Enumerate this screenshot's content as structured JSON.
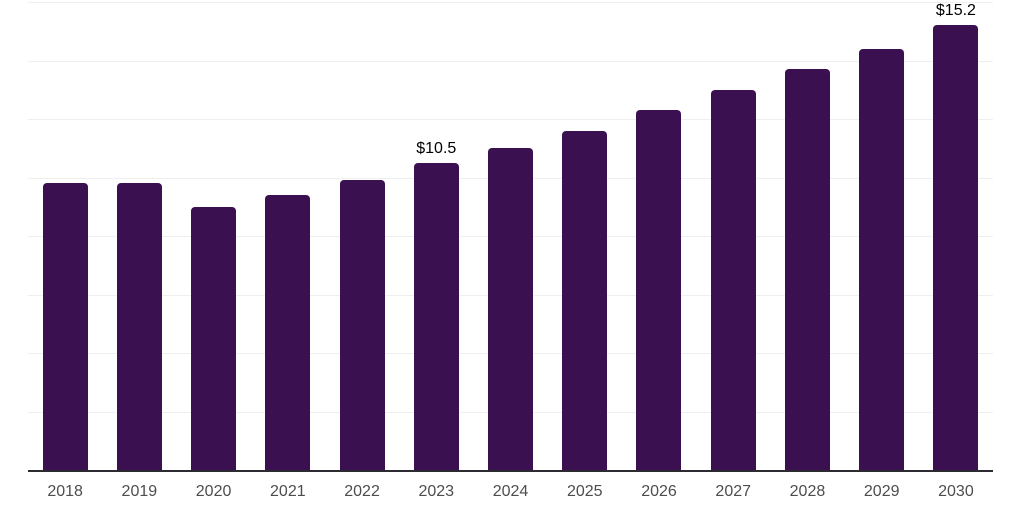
{
  "chart_data": {
    "type": "bar",
    "title": "",
    "xlabel": "",
    "ylabel": "",
    "categories": [
      "2018",
      "2019",
      "2020",
      "2021",
      "2022",
      "2023",
      "2024",
      "2025",
      "2026",
      "2027",
      "2028",
      "2029",
      "2030"
    ],
    "values": [
      9.8,
      9.8,
      9.0,
      9.4,
      9.9,
      10.5,
      11.0,
      11.6,
      12.3,
      13.0,
      13.7,
      14.4,
      15.2
    ],
    "data_labels": [
      "",
      "",
      "",
      "",
      "",
      "$10.5",
      "",
      "",
      "",
      "",
      "",
      "",
      "$15.2"
    ],
    "ylim": [
      0,
      16
    ],
    "gridline_step": 2,
    "grid": "horizontal",
    "legend_position": "none",
    "colors": {
      "bar": "#3A1051",
      "axis_line": "#2B2B31",
      "gridline": "#EFEFEF",
      "tick_label": "#4D4D4D",
      "data_label": "#000000",
      "background": "#FFFFFF"
    }
  }
}
